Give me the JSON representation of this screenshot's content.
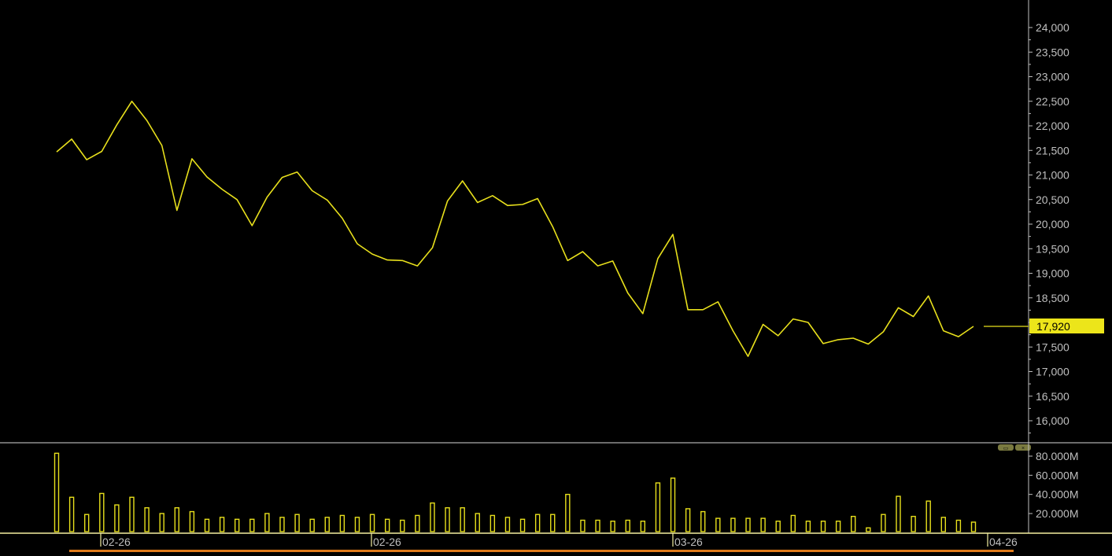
{
  "colors": {
    "background": "#000000",
    "series": "#e8e01c",
    "axis": "#bfbfbf",
    "price_badge_bg": "#ece51a",
    "price_badge_text": "#000000",
    "date_axis_line": "#f5f0a0",
    "scroll_accent": "#e07a1a"
  },
  "panel_controls": {
    "icon_left": "expand-icon",
    "icon_right": "close-icon"
  },
  "chart_data": [
    {
      "type": "line",
      "name": "price",
      "y_axis_position": "right",
      "yticks": [
        16000,
        16500,
        17000,
        17500,
        18000,
        18500,
        19000,
        19500,
        20000,
        20500,
        21000,
        21500,
        22000,
        22500,
        23000,
        23500,
        24000
      ],
      "ytick_labels": [
        "16,000",
        "16,500",
        "17,000",
        "17,500",
        "18,000",
        "18,500",
        "19,000",
        "19,500",
        "20,000",
        "20,500",
        "21,000",
        "21,500",
        "22,000",
        "22,500",
        "23,000",
        "23,500",
        "24,000"
      ],
      "ylim": [
        15600,
        24500
      ],
      "last_price": 17920,
      "last_price_label": "17,920",
      "values": [
        21470,
        21730,
        21310,
        21480,
        22020,
        22500,
        22110,
        21600,
        20280,
        21330,
        20960,
        20710,
        20500,
        19970,
        20550,
        20950,
        21060,
        20680,
        20490,
        20120,
        19600,
        19390,
        19270,
        19260,
        19150,
        19520,
        20470,
        20880,
        20440,
        20580,
        20380,
        20400,
        20520,
        19950,
        19260,
        19440,
        19150,
        19250,
        18600,
        18180,
        19300,
        19790,
        18260,
        18260,
        18420,
        17830,
        17310,
        17960,
        17730,
        18070,
        18000,
        17570,
        17650,
        17680,
        17560,
        17810,
        18300,
        18120,
        18540,
        17830,
        17710,
        17920
      ]
    },
    {
      "type": "bar",
      "name": "volume",
      "y_axis_position": "right",
      "unit": "M",
      "yticks": [
        20,
        40,
        60,
        80
      ],
      "ytick_labels": [
        "20.000M",
        "40.000M",
        "60.000M",
        "80.000M"
      ],
      "ylim": [
        0,
        92
      ],
      "values": [
        83,
        37,
        19,
        41,
        29,
        37,
        26,
        20,
        26,
        22,
        14,
        16,
        14,
        14,
        20,
        16,
        19,
        14,
        16,
        18,
        16,
        19,
        14,
        13,
        18,
        31,
        26,
        26,
        20,
        18,
        16,
        14,
        19,
        19,
        40,
        13,
        13,
        12,
        13,
        12,
        52,
        57,
        25,
        22,
        15,
        15,
        15,
        15,
        12,
        18,
        12,
        12,
        12,
        17,
        5,
        19,
        38,
        17,
        33,
        16,
        13,
        11
      ]
    }
  ],
  "x_axis": {
    "labels": [
      "02-26",
      "02-26",
      "03-26",
      "04-26"
    ],
    "label_text_suffix": ""
  }
}
